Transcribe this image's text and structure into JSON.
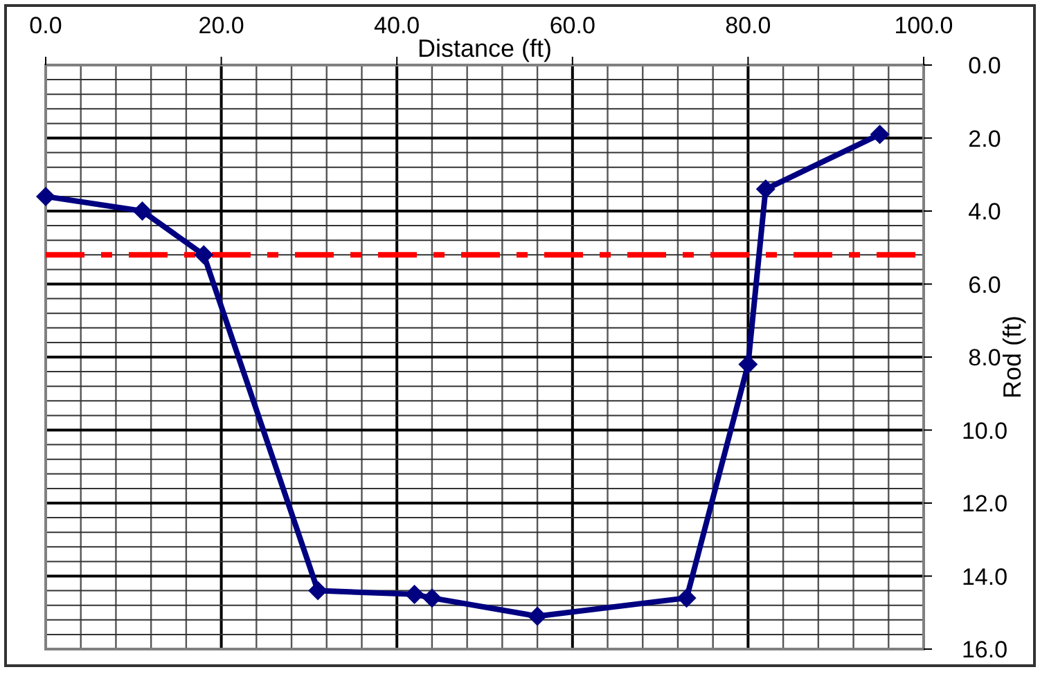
{
  "chart_data": {
    "type": "line",
    "xlabel": "Distance (ft)",
    "ylabel": "Rod (ft)",
    "x": [
      0,
      11,
      18,
      31,
      42,
      44,
      56,
      73,
      80,
      82,
      95
    ],
    "series": [
      {
        "color": "#000080",
        "values": [
          3.6,
          4.0,
          5.2,
          14.4,
          14.5,
          14.6,
          15.1,
          14.6,
          8.2,
          3.4,
          1.9
        ]
      }
    ],
    "xlim": [
      0,
      100
    ],
    "xticks": [
      {
        "value": 0,
        "label": "0.0"
      },
      {
        "value": 4,
        "label": null
      },
      {
        "value": 8,
        "label": null
      },
      {
        "value": 12,
        "label": null
      },
      {
        "value": 16,
        "label": null
      },
      {
        "value": 20,
        "label": "20.0"
      },
      {
        "value": 24,
        "label": null
      },
      {
        "value": 28,
        "label": null
      },
      {
        "value": 32,
        "label": null
      },
      {
        "value": 36,
        "label": null
      },
      {
        "value": 40,
        "label": "40.0"
      },
      {
        "value": 44,
        "label": null
      },
      {
        "value": 48,
        "label": null
      },
      {
        "value": 52,
        "label": null
      },
      {
        "value": 56,
        "label": null
      },
      {
        "value": 60,
        "label": "60.0"
      },
      {
        "value": 64,
        "label": null
      },
      {
        "value": 68,
        "label": null
      },
      {
        "value": 72,
        "label": null
      },
      {
        "value": 76,
        "label": null
      },
      {
        "value": 80,
        "label": "80.0"
      },
      {
        "value": 84,
        "label": null
      },
      {
        "value": 88,
        "label": null
      },
      {
        "value": 92,
        "label": null
      },
      {
        "value": 96,
        "label": null
      },
      {
        "value": 100,
        "label": "100.0"
      }
    ],
    "ylim": [
      16,
      0
    ],
    "yticks": [
      {
        "value": 0,
        "label": "0.0"
      },
      {
        "value": 0.4,
        "label": null
      },
      {
        "value": 0.8,
        "label": null
      },
      {
        "value": 1.2,
        "label": null
      },
      {
        "value": 1.6,
        "label": null
      },
      {
        "value": 2,
        "label": "2.0"
      },
      {
        "value": 2.4,
        "label": null
      },
      {
        "value": 2.8,
        "label": null
      },
      {
        "value": 3.2,
        "label": null
      },
      {
        "value": 3.6,
        "label": null
      },
      {
        "value": 4,
        "label": "4.0"
      },
      {
        "value": 4.4,
        "label": null
      },
      {
        "value": 4.8,
        "label": null
      },
      {
        "value": 5.2,
        "label": null
      },
      {
        "value": 5.6,
        "label": null
      },
      {
        "value": 6,
        "label": "6.0"
      },
      {
        "value": 6.4,
        "label": null
      },
      {
        "value": 6.8,
        "label": null
      },
      {
        "value": 7.2,
        "label": null
      },
      {
        "value": 7.6,
        "label": null
      },
      {
        "value": 8,
        "label": "8.0"
      },
      {
        "value": 8.4,
        "label": null
      },
      {
        "value": 8.8,
        "label": null
      },
      {
        "value": 9.2,
        "label": null
      },
      {
        "value": 9.6,
        "label": null
      },
      {
        "value": 10,
        "label": "10.0"
      },
      {
        "value": 10.4,
        "label": null
      },
      {
        "value": 10.8,
        "label": null
      },
      {
        "value": 11.2,
        "label": null
      },
      {
        "value": 11.6,
        "label": null
      },
      {
        "value": 12,
        "label": "12.0"
      },
      {
        "value": 12.4,
        "label": null
      },
      {
        "value": 12.8,
        "label": null
      },
      {
        "value": 13.2,
        "label": null
      },
      {
        "value": 13.6,
        "label": null
      },
      {
        "value": 14,
        "label": "14.0"
      },
      {
        "value": 14.4,
        "label": null
      },
      {
        "value": 14.8,
        "label": null
      },
      {
        "value": 15.2,
        "label": null
      },
      {
        "value": 15.6,
        "label": null
      },
      {
        "value": 16,
        "label": "16.0"
      }
    ],
    "grid": true,
    "marker": "diamond",
    "line_style": "solid",
    "ref_lines": [
      {
        "axis": "y",
        "value": 5.2,
        "color": "#ff0000",
        "line_style": "dashed"
      }
    ]
  }
}
